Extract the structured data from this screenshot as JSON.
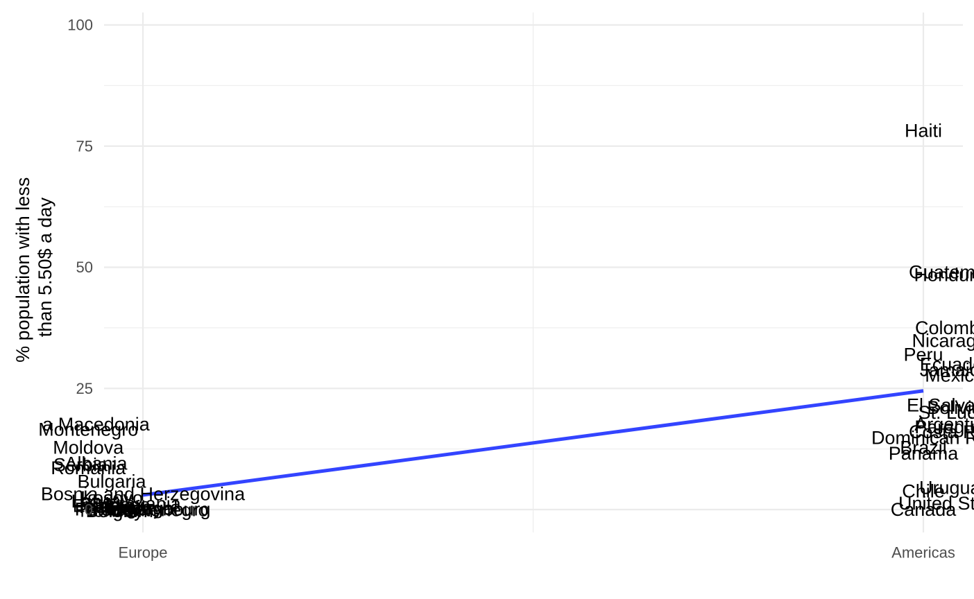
{
  "chart_data": {
    "type": "scatter",
    "title": "",
    "xlabel": "",
    "ylabel_lines": [
      "% population with less",
      "than 5.50$ a day"
    ],
    "x_categories": [
      "Europe",
      "Americas"
    ],
    "ylim": [
      -4,
      102
    ],
    "y_ticks": [
      0,
      25,
      50,
      75,
      100
    ],
    "y_tick_labels": [
      "0",
      "25",
      "50",
      "75",
      "100"
    ],
    "grid": true,
    "legend": "none",
    "colors": {
      "trend": "#3344ff",
      "label": "#000000",
      "grid": "#ebebeb"
    },
    "trend_line": {
      "from": {
        "x": "Europe",
        "y": 3
      },
      "to": {
        "x": "Americas",
        "y": 24.5
      }
    },
    "points": [
      {
        "label": "a Macedonia",
        "x": "Europe",
        "x_offset": -0.06,
        "y": 17.6
      },
      {
        "label": "Montenegro",
        "x": "Europe",
        "x_offset": -0.07,
        "y": 16.5
      },
      {
        "label": "Moldova",
        "x": "Europe",
        "x_offset": -0.07,
        "y": 12.8
      },
      {
        "label": "Albania",
        "x": "Europe",
        "x_offset": -0.06,
        "y": 9.5
      },
      {
        "label": "Serbia",
        "x": "Europe",
        "x_offset": -0.08,
        "y": 9.2
      },
      {
        "label": "Romania",
        "x": "Europe",
        "x_offset": -0.07,
        "y": 8.6
      },
      {
        "label": "Bulgaria",
        "x": "Europe",
        "x_offset": -0.04,
        "y": 5.8
      },
      {
        "label": "Bosnia and Herzegovina",
        "x": "Europe",
        "x_offset": 0.0,
        "y": 3.2
      },
      {
        "label": "Kosovo",
        "x": "Europe",
        "x_offset": -0.04,
        "y": 2.4
      },
      {
        "label": "Latvia",
        "x": "Europe",
        "x_offset": -0.06,
        "y": 1.7
      },
      {
        "label": "Lithuania",
        "x": "Europe",
        "x_offset": 0.0,
        "y": 1.2
      },
      {
        "label": "Estonia",
        "x": "Europe",
        "x_offset": -0.05,
        "y": 0.8
      },
      {
        "label": "Greece",
        "x": "Europe",
        "x_offset": -0.03,
        "y": 1.0
      },
      {
        "label": "Italy",
        "x": "Europe",
        "x_offset": -0.06,
        "y": 0.6
      },
      {
        "label": "Spain",
        "x": "Europe",
        "x_offset": -0.02,
        "y": 0.5
      },
      {
        "label": "Portugal",
        "x": "Europe",
        "x_offset": 0.0,
        "y": 0.3
      },
      {
        "label": "Hungary",
        "x": "Europe",
        "x_offset": -0.02,
        "y": 0.2
      },
      {
        "label": "Poland",
        "x": "Europe",
        "x_offset": -0.05,
        "y": 0.1
      },
      {
        "label": "Luxembourg",
        "x": "Europe",
        "x_offset": 0.02,
        "y": 0.1
      },
      {
        "label": "Montenegro",
        "x": "Europe",
        "x_offset": 0.02,
        "y": -0.1
      },
      {
        "label": "Norway",
        "x": "Europe",
        "x_offset": -0.04,
        "y": -0.2
      },
      {
        "label": "Belgium",
        "x": "Europe",
        "x_offset": -0.03,
        "y": -0.3
      },
      {
        "label": "Haiti",
        "x": "Americas",
        "x_offset": 0.0,
        "y": 78.2
      },
      {
        "label": "Guatemala",
        "x": "Americas",
        "x_offset": 0.04,
        "y": 49.0
      },
      {
        "label": "Honduras",
        "x": "Americas",
        "x_offset": 0.04,
        "y": 48.4
      },
      {
        "label": "Colombia",
        "x": "Americas",
        "x_offset": 0.04,
        "y": 37.5
      },
      {
        "label": "Nicaragua",
        "x": "Americas",
        "x_offset": 0.04,
        "y": 34.8
      },
      {
        "label": "Peru",
        "x": "Americas",
        "x_offset": 0.0,
        "y": 32.0
      },
      {
        "label": "Ecuador",
        "x": "Americas",
        "x_offset": 0.04,
        "y": 30.0
      },
      {
        "label": "Jamaica",
        "x": "Americas",
        "x_offset": 0.04,
        "y": 28.8
      },
      {
        "label": "Mexico",
        "x": "Americas",
        "x_offset": 0.04,
        "y": 27.7
      },
      {
        "label": "El Salvador",
        "x": "Americas",
        "x_offset": 0.04,
        "y": 21.5
      },
      {
        "label": "Bolivia",
        "x": "Americas",
        "x_offset": 0.04,
        "y": 21.0
      },
      {
        "label": "St. Lucia",
        "x": "Americas",
        "x_offset": 0.04,
        "y": 20.0
      },
      {
        "label": "Argentina",
        "x": "Americas",
        "x_offset": 0.04,
        "y": 17.6
      },
      {
        "label": "Paraguay",
        "x": "Americas",
        "x_offset": 0.04,
        "y": 17.0
      },
      {
        "label": "Costa Rica",
        "x": "Americas",
        "x_offset": 0.04,
        "y": 16.0
      },
      {
        "label": "Dominican Republic",
        "x": "Americas",
        "x_offset": 0.04,
        "y": 14.8
      },
      {
        "label": "Brazil",
        "x": "Americas",
        "x_offset": 0.0,
        "y": 12.8
      },
      {
        "label": "Panama",
        "x": "Americas",
        "x_offset": 0.0,
        "y": 11.6
      },
      {
        "label": "Uruguay",
        "x": "Americas",
        "x_offset": 0.04,
        "y": 4.5
      },
      {
        "label": "Chile",
        "x": "Americas",
        "x_offset": 0.0,
        "y": 3.8
      },
      {
        "label": "United States",
        "x": "Americas",
        "x_offset": 0.04,
        "y": 1.3
      },
      {
        "label": "Canada",
        "x": "Americas",
        "x_offset": 0.0,
        "y": 0.0
      }
    ]
  }
}
